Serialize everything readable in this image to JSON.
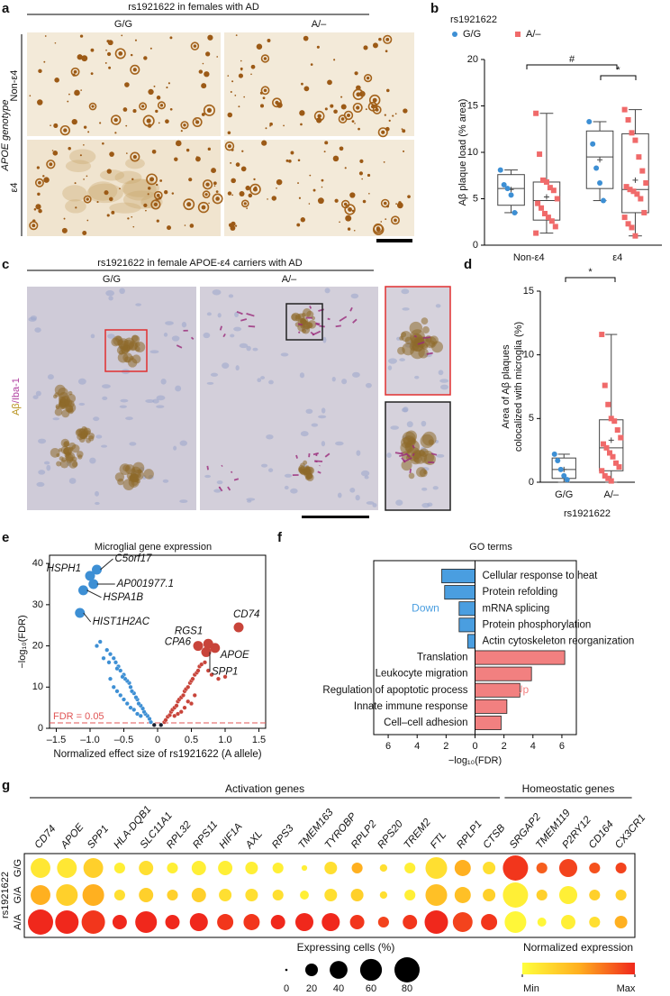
{
  "panel_letters": [
    "a",
    "b",
    "c",
    "d",
    "e",
    "f",
    "g"
  ],
  "images": {
    "a": {
      "title": "rs1921622 in females with AD",
      "columns": [
        "G/G",
        "A/–"
      ],
      "rows": [
        "Non-ε4",
        "ε4"
      ],
      "row_axis_label": "APOE genotype"
    },
    "c": {
      "title": "rs1921622 in female APOE-ε4 carriers with AD",
      "columns": [
        "G/G",
        "A/–"
      ],
      "stain_labels": [
        "Aβ",
        "/Iba-1"
      ]
    }
  },
  "chart_data": [
    {
      "type": "box",
      "title": "rs1921622",
      "ylabel": "Aβ plaque load (% area)",
      "categories": [
        "Non-ε4",
        "ε4"
      ],
      "ylim": [
        0,
        20
      ],
      "yticks": [
        0,
        5,
        10,
        15,
        20
      ],
      "annotations": [
        "#",
        "*"
      ],
      "series": [
        {
          "name": "G/G",
          "color": "#3d8fd4",
          "marker": "circle",
          "boxes": [
            {
              "min": 3.5,
              "q1": 4.3,
              "median": 6.1,
              "q3": 7.6,
              "max": 8.1,
              "mean": 6.0,
              "points": [
                8.1,
                6.5,
                6.1,
                5.4,
                3.5
              ]
            },
            {
              "min": 4.8,
              "q1": 6.1,
              "median": 9.5,
              "q3": 12.3,
              "max": 13.3,
              "mean": 9.2,
              "points": [
                13.3,
                10.9,
                8.3,
                6.7,
                4.8
              ]
            }
          ]
        },
        {
          "name": "A/–",
          "color": "#f06a6a",
          "marker": "square",
          "boxes": [
            {
              "min": 1.3,
              "q1": 2.7,
              "median": 4.8,
              "q3": 6.8,
              "max": 14.2,
              "mean": 5.2,
              "points": [
                14.2,
                9.8,
                7.0,
                6.8,
                6.2,
                5.9,
                5.0,
                4.5,
                4.0,
                3.4,
                3.0,
                2.6,
                2.0,
                1.3
              ]
            },
            {
              "min": 1.0,
              "q1": 3.5,
              "median": 6.0,
              "q3": 12.0,
              "max": 14.6,
              "mean": 7.0,
              "points": [
                14.6,
                13.5,
                12.1,
                11.3,
                9.5,
                8.0,
                6.7,
                6.3,
                6.0,
                5.8,
                5.5,
                5.0,
                3.5,
                3.0,
                2.3,
                1.9,
                1.0
              ]
            }
          ]
        }
      ]
    },
    {
      "type": "box",
      "ylabel": [
        "Area of Aβ plaques",
        "colocalized with microglia (%)"
      ],
      "xlabel": "rs1921622",
      "categories": [
        "G/G",
        "A/–"
      ],
      "ylim": [
        0,
        15
      ],
      "yticks": [
        0,
        5,
        10,
        15
      ],
      "annotations": [
        "*"
      ],
      "colors": [
        "#3d8fd4",
        "#f06a6a"
      ],
      "markers": [
        "circle",
        "square"
      ],
      "boxes": [
        {
          "min": 0,
          "q1": 0.3,
          "median": 1.0,
          "q3": 1.9,
          "max": 2.2,
          "mean": 1.0,
          "points": [
            2.2,
            1.7,
            1.0,
            0.5,
            0.2
          ]
        },
        {
          "min": 0,
          "q1": 0.9,
          "median": 2.7,
          "q3": 4.9,
          "max": 11.6,
          "mean": 3.3,
          "points": [
            11.6,
            7.6,
            6.1,
            5.0,
            4.8,
            4.1,
            3.5,
            3.0,
            2.7,
            2.3,
            2.0,
            1.5,
            1.2,
            0.9,
            0.5,
            0.3,
            0.1
          ]
        }
      ]
    },
    {
      "type": "scatter",
      "title": "Microglial gene expression",
      "xlabel": "Normalized effect size of rs1921622 (A allele)",
      "ylabel": "−log₁₀(FDR)",
      "xlim": [
        -1.6,
        1.6
      ],
      "xticks": [
        {
          "value": -1.5,
          "label": "–1.5"
        },
        {
          "value": -1,
          "label": "–1.0"
        },
        {
          "value": -0.5,
          "label": "–0.5"
        },
        0,
        0.5,
        {
          "value": 1,
          "label": "1.0"
        },
        1.5
      ],
      "ylim": [
        0,
        42
      ],
      "yticks": [
        0,
        10,
        20,
        30,
        40
      ],
      "threshold": {
        "label": "FDR = 0.05",
        "value": 1.3,
        "color": "#e05555"
      },
      "nonsignificant_color": "#1b2030",
      "series": [
        {
          "color": "#3d8fd4",
          "x": [
            -0.05,
            -0.1,
            -0.12,
            -0.15,
            -0.18,
            -0.2,
            -0.22,
            -0.25,
            -0.28,
            -0.3,
            -0.32,
            -0.35,
            -0.38,
            -0.4,
            -0.42,
            -0.45,
            -0.48,
            -0.5,
            -0.52,
            -0.55,
            -0.58,
            -0.6,
            -0.62,
            -0.65,
            -0.7,
            -0.72,
            -0.75,
            -0.8,
            -0.85,
            -0.9,
            -0.6,
            -0.5,
            -0.45,
            -0.4,
            -0.35,
            -0.55,
            -0.7,
            -0.3,
            -0.25,
            -0.65
          ],
          "y": [
            0.8,
            1.5,
            2.3,
            3,
            3.5,
            4,
            4.8,
            5.5,
            6,
            7,
            7.5,
            8.5,
            9,
            10,
            11,
            11.5,
            12,
            13,
            12.5,
            14,
            15,
            14.5,
            16,
            17,
            18,
            16,
            19,
            17,
            21,
            20,
            9,
            7,
            6,
            5,
            4.5,
            8,
            12,
            3.5,
            3,
            10
          ]
        },
        {
          "color": "#c8443a",
          "x": [
            0.05,
            0.1,
            0.12,
            0.15,
            0.18,
            0.2,
            0.22,
            0.25,
            0.28,
            0.3,
            0.32,
            0.35,
            0.38,
            0.4,
            0.42,
            0.45,
            0.48,
            0.5,
            0.52,
            0.55,
            0.58,
            0.6,
            0.62,
            0.65,
            0.7,
            0.75,
            0.8,
            0.9,
            1.0,
            0.4,
            0.5,
            0.3,
            0.35,
            0.45,
            0.55,
            0.25
          ],
          "y": [
            0.8,
            1.5,
            2,
            2.8,
            3.2,
            4,
            4.5,
            5,
            5.5,
            6.5,
            7,
            7.5,
            8,
            9,
            9.5,
            10,
            11,
            11.5,
            12,
            13,
            13.5,
            14,
            15,
            15.5,
            16,
            14,
            13,
            12,
            12.5,
            5,
            6,
            3.5,
            4,
            6.5,
            8,
            3
          ]
        }
      ],
      "labeled_genes": {
        "labels": [
          "HSPH1",
          "C5orf17",
          "AP001977.1",
          "HSPA1B",
          "HIST1H2AC",
          "CD74",
          "RGS1",
          "CPA6",
          "APOE",
          "SPP1"
        ],
        "x": [
          -1.0,
          -0.9,
          -0.95,
          -1.1,
          -1.15,
          1.2,
          0.75,
          0.6,
          0.85,
          0.72
        ],
        "y": [
          37,
          38.5,
          35,
          33.5,
          28,
          24.5,
          20.5,
          20,
          19.5,
          18.5
        ]
      }
    },
    {
      "type": "hbar",
      "title": "GO terms",
      "xlabel": "−log₁₀(FDR)",
      "xlim": [
        -7,
        7
      ],
      "xticks": [
        {
          "value": -6,
          "label": "6"
        },
        {
          "value": -4,
          "label": "4"
        },
        {
          "value": -2,
          "label": "2"
        },
        0,
        2,
        4,
        6
      ],
      "series": [
        {
          "name": "Down",
          "color": "#4a9ee0",
          "categories": [
            "Cellular response to heat",
            "Protein refolding",
            "mRNA splicing",
            "Protein phosphorylation",
            "Actin cytoskeleton reorganization"
          ],
          "values": [
            -2.3,
            -2.1,
            -1.1,
            -1.1,
            -0.5
          ]
        },
        {
          "name": "Up",
          "color": "#f28080",
          "categories": [
            "Translation",
            "Leukocyte migration",
            "Regulation of apoptotic process",
            "Innate immune response",
            "Cell–cell adhesion"
          ],
          "values": [
            6.2,
            3.9,
            3.1,
            2.2,
            1.8
          ]
        }
      ]
    },
    {
      "type": "dotplot",
      "row_label": "rs1921622",
      "rows": [
        "G/G",
        "G/A",
        "A/A"
      ],
      "groups": [
        {
          "label": "Activation genes",
          "genes": [
            "CD74",
            "APOE",
            "SPP1",
            "HLA-DQB1",
            "SLC11A1",
            "RPL32",
            "RPS11",
            "HIF1A",
            "AXL",
            "RPS3",
            "TMEM163",
            "TYROBP",
            "RPLP2",
            "RPS20",
            "TREM2",
            "FTL",
            "RPLP1",
            "CTSB"
          ]
        },
        {
          "label": "Homeostatic genes",
          "genes": [
            "SRGAP2",
            "TMEM119",
            "P2RY12",
            "CD164",
            "CX3CR1"
          ]
        }
      ],
      "pct": [
        [
          49,
          49,
          49,
          15,
          26,
          15,
          26,
          26,
          20,
          15,
          4,
          20,
          15,
          7,
          15,
          59,
          33,
          20,
          80,
          15,
          41,
          15,
          15
        ],
        [
          49,
          59,
          59,
          15,
          26,
          15,
          26,
          20,
          20,
          15,
          10,
          20,
          20,
          7,
          15,
          59,
          33,
          20,
          80,
          15,
          41,
          15,
          15
        ],
        [
          80,
          69,
          69,
          26,
          59,
          26,
          41,
          33,
          33,
          26,
          41,
          41,
          26,
          15,
          26,
          69,
          49,
          33,
          59,
          10,
          26,
          15,
          20
        ]
      ],
      "expression": [
        [
          0.15,
          0.15,
          0.3,
          0.1,
          0.2,
          0.1,
          0.1,
          0.1,
          0.1,
          0.1,
          0.1,
          0.2,
          0.5,
          0.2,
          0.1,
          0.2,
          0.5,
          0.2,
          0.95,
          0.8,
          0.9,
          0.85,
          0.9
        ],
        [
          0.5,
          0.3,
          0.5,
          0.2,
          0.3,
          0.3,
          0.3,
          0.2,
          0.2,
          0.2,
          0.1,
          0.2,
          0.3,
          0.2,
          0.1,
          0.4,
          0.4,
          0.3,
          0.1,
          0.3,
          0.1,
          0.3,
          0.3
        ],
        [
          1,
          1,
          0.95,
          1,
          1,
          1,
          1,
          0.95,
          0.95,
          1,
          1,
          1,
          0.95,
          0.9,
          0.95,
          1,
          0.9,
          0.95,
          0.05,
          0.05,
          0.1,
          0.2,
          0.5
        ]
      ],
      "size_legend": {
        "title": "Expressing cells (%)",
        "ticks": [
          0,
          20,
          40,
          60,
          80
        ]
      },
      "color_legend": {
        "title": "Normalized expression",
        "clim": [
          0,
          1
        ],
        "ticks": [
          {
            "value": 0,
            "label": "Min"
          },
          {
            "value": 1,
            "label": "Max"
          }
        ],
        "colors": [
          "#ffff3c",
          "#ffb020",
          "#f0281c"
        ]
      }
    }
  ]
}
